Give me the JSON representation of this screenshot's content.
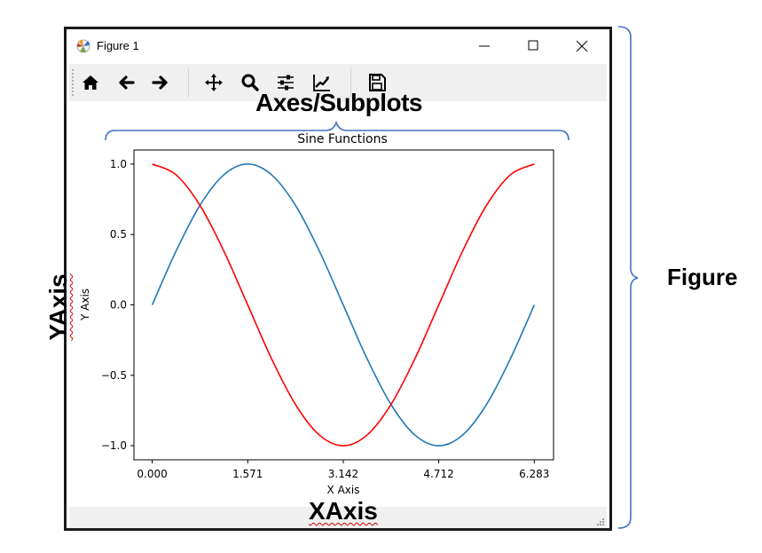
{
  "window": {
    "title": "Figure 1",
    "icons": [
      "matplotlib-logo-icon",
      "minimize-icon",
      "maximize-icon",
      "close-icon"
    ]
  },
  "toolbar": {
    "buttons": [
      "home-icon",
      "back-arrow-icon",
      "forward-arrow-icon",
      "pan-icon",
      "zoom-icon",
      "configure-subplots-icon",
      "edit-axis-icon",
      "save-icon"
    ]
  },
  "annotations": {
    "axes": "Axes/Subplots",
    "figure": "Figure",
    "xaxis": "XAxis",
    "yaxis": "YAxis"
  },
  "chart_data": {
    "type": "line",
    "title": "Sine Functions",
    "xlabel": "X Axis",
    "ylabel": "Y Axis",
    "xlim": [
      -0.3,
      6.6
    ],
    "ylim": [
      -1.1,
      1.1
    ],
    "x_ticks": [
      0,
      1.571,
      3.142,
      4.712,
      6.283
    ],
    "x_tick_labels": [
      "0.000",
      "1.571",
      "3.142",
      "4.712",
      "6.283"
    ],
    "y_ticks": [
      1.0,
      0.5,
      0.0,
      -0.5,
      -1.0
    ],
    "y_tick_labels": [
      "1.0",
      "0.5",
      "0.0",
      "−0.5",
      "−1.0"
    ],
    "grid": false,
    "series": [
      {
        "color": "#1f77b4",
        "x": [
          0,
          0.3927,
          0.7854,
          1.1781,
          1.5708,
          1.9635,
          2.3562,
          2.7489,
          3.1416,
          3.5343,
          3.927,
          4.3197,
          4.7124,
          5.1051,
          5.4978,
          5.8905,
          6.2832
        ],
        "y": [
          0,
          0.3827,
          0.7071,
          0.9239,
          1,
          0.9239,
          0.7071,
          0.3827,
          0,
          -0.3827,
          -0.7071,
          -0.9239,
          -1,
          -0.9239,
          -0.7071,
          -0.3827,
          0
        ]
      },
      {
        "color": "#ff0000",
        "x": [
          0,
          0.3927,
          0.7854,
          1.1781,
          1.5708,
          1.9635,
          2.3562,
          2.7489,
          3.1416,
          3.5343,
          3.927,
          4.3197,
          4.7124,
          5.1051,
          5.4978,
          5.8905,
          6.2832
        ],
        "y": [
          1,
          0.9239,
          0.7071,
          0.3827,
          0,
          -0.3827,
          -0.7071,
          -0.9239,
          -1,
          -0.9239,
          -0.7071,
          -0.3827,
          0,
          0.3827,
          0.7071,
          0.9239,
          1
        ]
      }
    ]
  }
}
